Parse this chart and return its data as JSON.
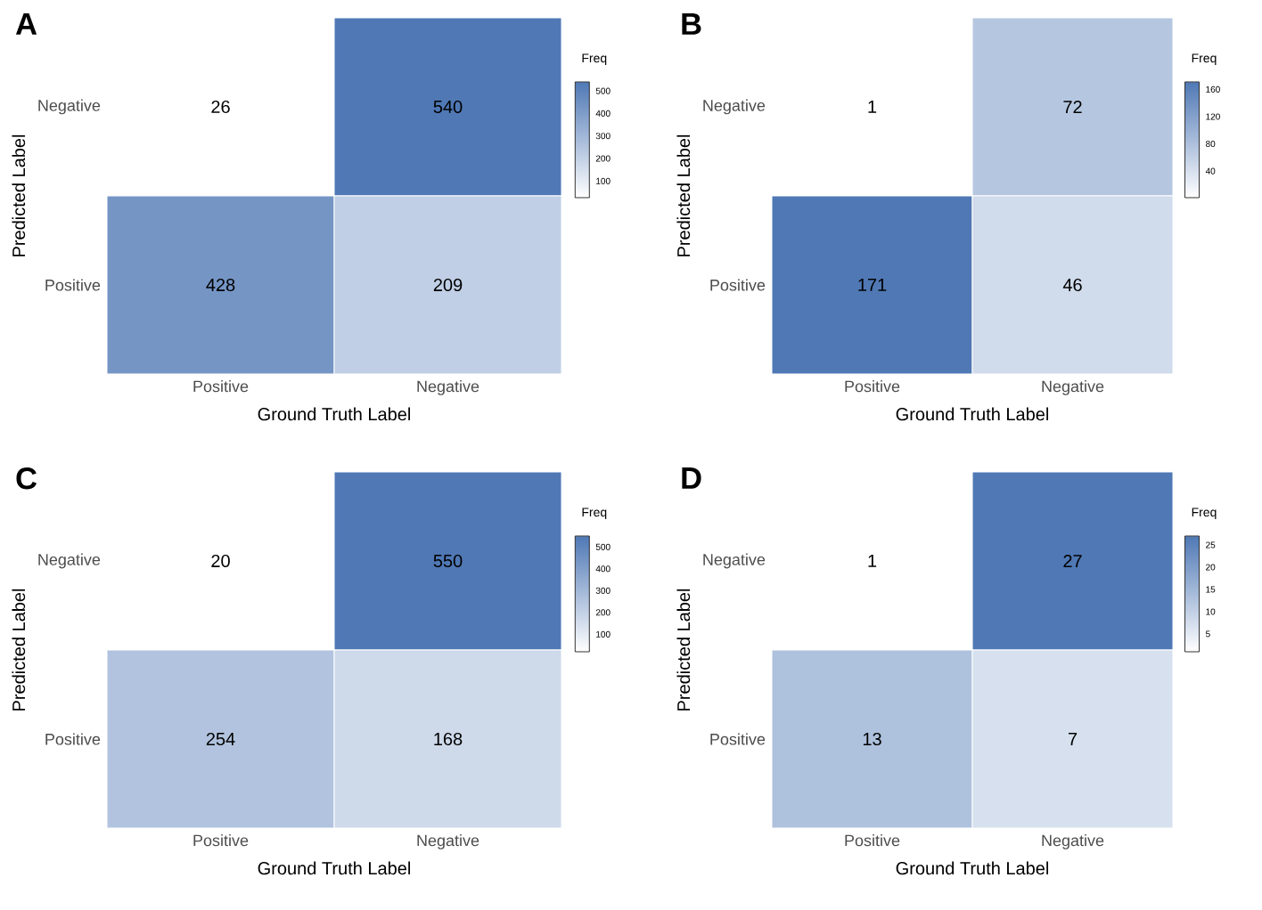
{
  "chart_data": [
    {
      "type": "heatmap",
      "title": "A",
      "xlabel": "Ground Truth Label",
      "ylabel": "Predicted Label",
      "clabel": "Freq",
      "categories": [
        "Positive",
        "Negative"
      ],
      "y_categories": [
        "Negative",
        "Positive"
      ],
      "cells": [
        [
          26,
          540
        ],
        [
          428,
          209
        ]
      ],
      "clim": [
        26,
        540
      ],
      "cticks": [
        100,
        200,
        300,
        400,
        500
      ],
      "color": "#4f78b5",
      "data_labels": true
    },
    {
      "type": "heatmap",
      "title": "B",
      "xlabel": "Ground Truth Label",
      "ylabel": "Predicted Label",
      "clabel": "Freq",
      "categories": [
        "Positive",
        "Negative"
      ],
      "y_categories": [
        "Negative",
        "Positive"
      ],
      "cells": [
        [
          1,
          72
        ],
        [
          171,
          46
        ]
      ],
      "clim": [
        1,
        171
      ],
      "cticks": [
        40,
        80,
        120,
        160
      ],
      "color": "#4f78b5",
      "data_labels": true
    },
    {
      "type": "heatmap",
      "title": "C",
      "xlabel": "Ground Truth Label",
      "ylabel": "Predicted Label",
      "clabel": "Freq",
      "categories": [
        "Positive",
        "Negative"
      ],
      "y_categories": [
        "Negative",
        "Positive"
      ],
      "cells": [
        [
          20,
          550
        ],
        [
          254,
          168
        ]
      ],
      "clim": [
        20,
        550
      ],
      "cticks": [
        100,
        200,
        300,
        400,
        500
      ],
      "color": "#4f78b5",
      "data_labels": true
    },
    {
      "type": "heatmap",
      "title": "D",
      "xlabel": "Ground Truth Label",
      "ylabel": "Predicted Label",
      "clabel": "Freq",
      "categories": [
        "Positive",
        "Negative"
      ],
      "y_categories": [
        "Negative",
        "Positive"
      ],
      "cells": [
        [
          1,
          27
        ],
        [
          13,
          7
        ]
      ],
      "clim": [
        1,
        27
      ],
      "cticks": [
        5,
        10,
        15,
        20,
        25
      ],
      "color": "#4f78b5",
      "data_labels": true
    }
  ]
}
